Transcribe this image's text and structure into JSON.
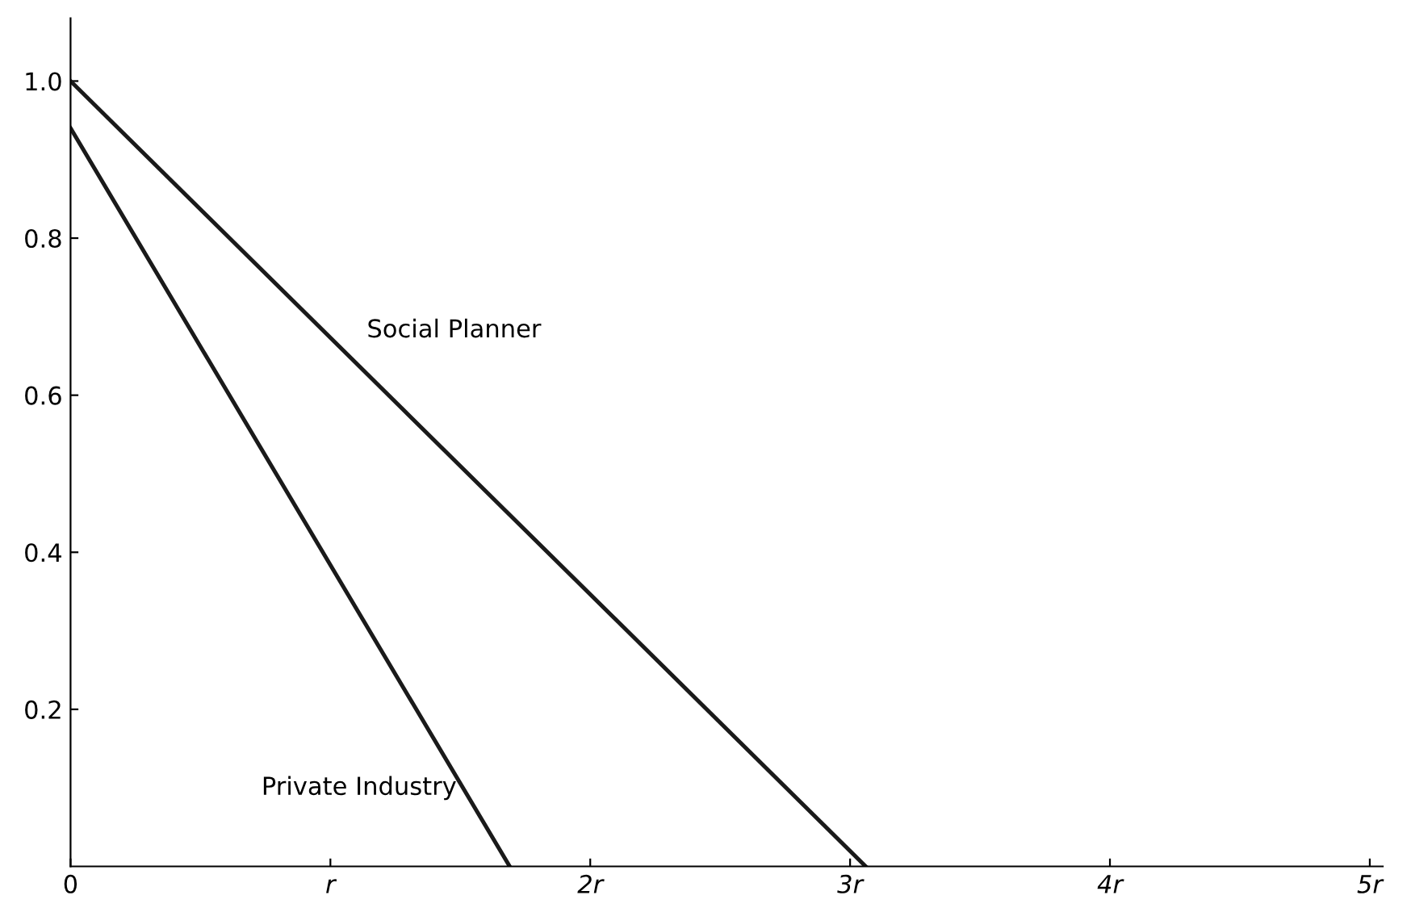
{
  "chart_data": {
    "type": "line",
    "series": [
      {
        "name": "Social Planner",
        "color": "#1a1a1a",
        "x": [
          0,
          3.06
        ],
        "values": [
          1.0,
          0
        ]
      },
      {
        "name": "Private Industry",
        "color": "#1a1a1a",
        "x": [
          0,
          1.69
        ],
        "values": [
          0.94,
          0
        ]
      }
    ],
    "xlim": [
      0,
      5.05
    ],
    "ylim": [
      0,
      1.08
    ],
    "xticks": [
      0,
      {
        "value": 1,
        "label": "r"
      },
      {
        "value": 2,
        "label": "2r"
      },
      {
        "value": 3,
        "label": "3r"
      },
      {
        "value": 4,
        "label": "4r"
      },
      {
        "value": 5,
        "label": "5r"
      }
    ],
    "yticks": [
      0.2,
      0.4,
      0.6,
      0.8,
      {
        "value": 1.0,
        "label": "1.0"
      }
    ],
    "grid": false,
    "legend": false,
    "marker": "none",
    "line_style": "solid"
  }
}
